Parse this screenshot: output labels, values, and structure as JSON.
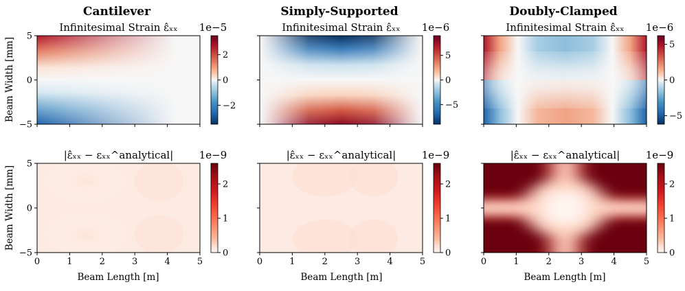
{
  "columns": [
    {
      "title": "Cantilever"
    },
    {
      "title": "Simply-Supported"
    },
    {
      "title": "Doubly-Clamped"
    }
  ],
  "chart_data": [
    {
      "type": "heatmap",
      "column": "Cantilever",
      "title": "Infinitesimal Strain ε̂ₓₓ",
      "xlabel": "",
      "ylabel": "Beam Width [mm]",
      "xlim": [
        0,
        5
      ],
      "ylim": [
        -5,
        5
      ],
      "xticks": [],
      "yticks": [
        "−5",
        "0",
        "5"
      ],
      "colormap": "RdBu_r",
      "colorbar": {
        "scale_label": "1e−5",
        "range": [
          -3.5,
          3.5
        ],
        "ticks": [
          "−2",
          "0",
          "2"
        ],
        "tick_values": [
          -2,
          0,
          2
        ]
      },
      "description_values": {
        "top_left": 3.5,
        "bottom_left": -3.5,
        "right_edge": 0
      }
    },
    {
      "type": "heatmap",
      "column": "Simply-Supported",
      "title": "Infinitesimal Strain ε̂ₓₓ",
      "xlabel": "",
      "ylabel": "",
      "xlim": [
        0,
        5
      ],
      "ylim": [
        -5,
        5
      ],
      "xticks": [],
      "yticks": [],
      "colormap": "RdBu_r",
      "colorbar": {
        "scale_label": "1e−6",
        "range": [
          -9,
          9
        ],
        "ticks": [
          "5",
          "0",
          "−5"
        ],
        "tick_values": [
          5,
          0,
          -5
        ]
      },
      "description_values": {
        "top_center": -9,
        "bottom_center": 9,
        "ends": 0
      }
    },
    {
      "type": "heatmap",
      "column": "Doubly-Clamped",
      "title": "Infinitesimal Strain ε̂ₓₓ",
      "xlabel": "",
      "ylabel": "",
      "xlim": [
        0,
        5
      ],
      "ylim": [
        -5,
        5
      ],
      "xticks": [],
      "yticks": [],
      "colormap": "RdBu_r",
      "colorbar": {
        "scale_label": "1e−6",
        "range": [
          -6.2,
          6.2
        ],
        "ticks": [
          "5",
          "0",
          "−5"
        ],
        "tick_values": [
          5,
          0,
          -5
        ]
      },
      "description_values": {
        "top_ends": 6.2,
        "top_center": -3.1,
        "bottom_ends": -6.2,
        "bottom_center": 3.1
      }
    },
    {
      "type": "heatmap",
      "column": "Cantilever",
      "title": "|ε̂ₓₓ − εₓₓ^analytical|",
      "xlabel": "Beam Length [m]",
      "ylabel": "Beam Width [mm]",
      "xlim": [
        0,
        5
      ],
      "ylim": [
        -5,
        5
      ],
      "xticks": [
        "0",
        "1",
        "2",
        "3",
        "4",
        "5"
      ],
      "yticks": [
        "−5",
        "0",
        "5"
      ],
      "colormap": "Reds",
      "colorbar": {
        "scale_label": "1e−9",
        "range": [
          0,
          2.6
        ],
        "ticks": [
          "2",
          "1",
          "0"
        ],
        "tick_values": [
          2,
          1,
          0
        ]
      },
      "description_values": {
        "typical": 0.12
      }
    },
    {
      "type": "heatmap",
      "column": "Simply-Supported",
      "title": "|ε̂ₓₓ − εₓₓ^analytical|",
      "xlabel": "Beam Length [m]",
      "ylabel": "",
      "xlim": [
        0,
        5
      ],
      "ylim": [
        -5,
        5
      ],
      "xticks": [
        "0",
        "1",
        "2",
        "3",
        "4",
        "5"
      ],
      "yticks": [],
      "colormap": "Reds",
      "colorbar": {
        "scale_label": "1e−9",
        "range": [
          0,
          2.6
        ],
        "ticks": [
          "2",
          "1",
          "0"
        ],
        "tick_values": [
          2,
          1,
          0
        ]
      },
      "description_values": {
        "typical": 0.15
      }
    },
    {
      "type": "heatmap",
      "column": "Doubly-Clamped",
      "title": "|ε̂ₓₓ − εₓₓ^analytical|",
      "xlabel": "Beam Length [m]",
      "ylabel": "",
      "xlim": [
        0,
        5
      ],
      "ylim": [
        -5,
        5
      ],
      "xticks": [
        "0",
        "1",
        "2",
        "3",
        "4",
        "5"
      ],
      "yticks": [],
      "colormap": "Reds",
      "colorbar": {
        "scale_label": "1e−9",
        "range": [
          0,
          2.6
        ],
        "ticks": [
          "2",
          "1",
          "0"
        ],
        "tick_values": [
          2,
          1,
          0
        ]
      },
      "description_values": {
        "corners": 2.6,
        "center_cross": 0
      }
    }
  ]
}
